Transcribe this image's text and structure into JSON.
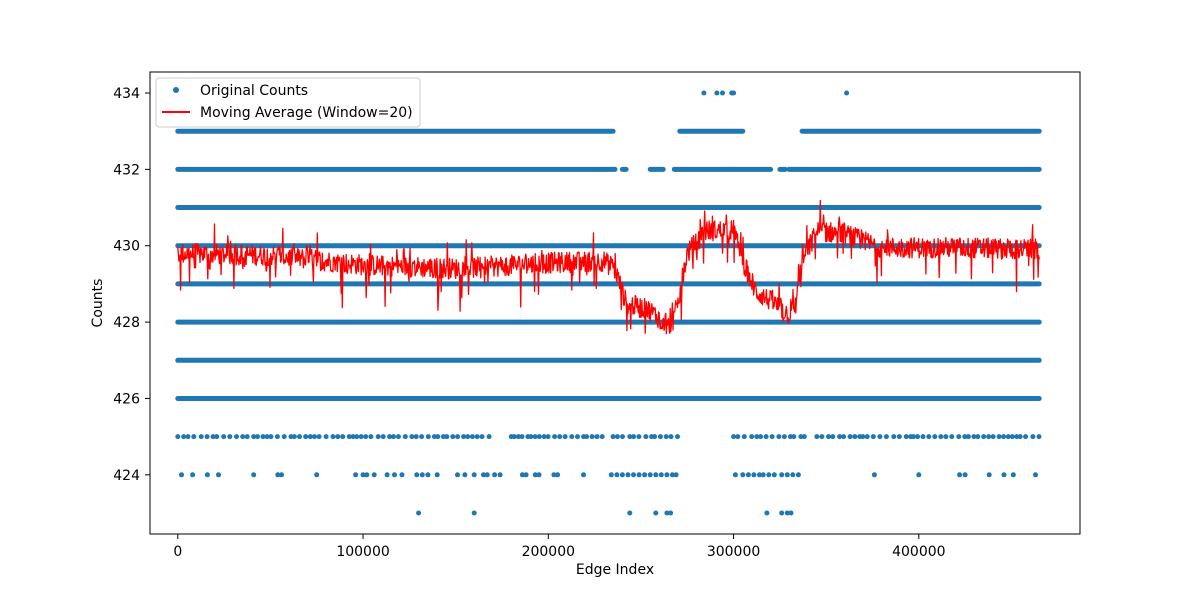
{
  "chart_data": {
    "type": "scatter",
    "title": "",
    "xlabel": "Edge Index",
    "ylabel": "Counts",
    "xlim": [
      -15000,
      487000
    ],
    "ylim": [
      422.45,
      434.55
    ],
    "x_ticks": [
      0,
      100000,
      200000,
      300000,
      400000
    ],
    "y_ticks": [
      424,
      426,
      428,
      430,
      432,
      434
    ],
    "grid": false,
    "legend_position": "top-left",
    "colors": {
      "scatter": "#1f77b4",
      "line": "#ff0000"
    },
    "series": [
      {
        "name": "Original Counts",
        "kind": "scatter",
        "color": "#1f77b4",
        "level_ranges": [
          {
            "y": 434,
            "x_points": [
              284000,
              291000,
              294000,
              299000,
              300000,
              361000
            ]
          },
          {
            "y": 433,
            "x_ranges": [
              [
                0,
                235000
              ],
              [
                271000,
                305000
              ],
              [
                337000,
                465000
              ]
            ]
          },
          {
            "y": 432,
            "x_ranges": [
              [
                0,
                236000
              ],
              [
                240000,
                242000
              ],
              [
                255000,
                262000
              ],
              [
                268000,
                300000
              ],
              [
                300000,
                320000
              ],
              [
                325000,
                328000
              ],
              [
                330000,
                465000
              ]
            ]
          },
          {
            "y": 431,
            "x_ranges": [
              [
                0,
                465000
              ]
            ]
          },
          {
            "y": 430,
            "x_ranges": [
              [
                0,
                465000
              ]
            ]
          },
          {
            "y": 429,
            "x_ranges": [
              [
                0,
                465000
              ]
            ]
          },
          {
            "y": 428,
            "x_ranges": [
              [
                0,
                465000
              ]
            ]
          },
          {
            "y": 427,
            "x_ranges": [
              [
                0,
                465000
              ]
            ]
          },
          {
            "y": 426,
            "x_ranges": [
              [
                0,
                465000
              ]
            ]
          },
          {
            "y": 425,
            "x_ranges": [
              [
                0,
                170000
              ],
              [
                180000,
                230000
              ],
              [
                235000,
                272000
              ],
              [
                300000,
                340000
              ],
              [
                345000,
                465000
              ]
            ],
            "sparse": true
          },
          {
            "y": 424,
            "x_points": [
              2000,
              8000,
              16000,
              22000,
              41000,
              54000,
              56000,
              75000,
              96000,
              100000,
              102000,
              106000,
              113000,
              117000,
              121000,
              129000,
              132000,
              135000,
              140000,
              151000,
              155000,
              160000,
              165000,
              167000,
              171000,
              174000,
              186000,
              188000,
              193000,
              195000,
              203000,
              205000,
              219000,
              234000,
              237000,
              240000,
              243000,
              246000,
              249000,
              252000,
              255000,
              258000,
              261000,
              264000,
              267000,
              269000,
              301000,
              305000,
              308000,
              311000,
              314000,
              316000,
              319000,
              322000,
              326000,
              329000,
              332000,
              335000,
              376000,
              400000,
              422000,
              425000,
              438000,
              446000,
              451000,
              463000
            ]
          },
          {
            "y": 423,
            "x_points": [
              130000,
              160000,
              244000,
              258000,
              264000,
              266000,
              318000,
              326000,
              329000,
              331000
            ]
          }
        ]
      },
      {
        "name": "Moving Average (Window=20)",
        "kind": "line",
        "color": "#ff0000",
        "trend": {
          "x": [
            0,
            50000,
            100000,
            150000,
            200000,
            230000,
            236000,
            242000,
            255000,
            265000,
            268000,
            275000,
            285000,
            300000,
            305000,
            312000,
            320000,
            330000,
            333000,
            337000,
            345000,
            360000,
            380000,
            420000,
            465000
          ],
          "y": [
            429.8,
            429.75,
            429.5,
            429.4,
            429.55,
            429.6,
            429.4,
            428.5,
            428.3,
            427.9,
            428.1,
            429.8,
            430.4,
            430.4,
            429.6,
            428.8,
            428.55,
            428.2,
            428.3,
            429.6,
            430.4,
            430.3,
            429.95,
            429.95,
            429.9
          ],
          "noise_amplitude": 0.55
        }
      }
    ]
  }
}
